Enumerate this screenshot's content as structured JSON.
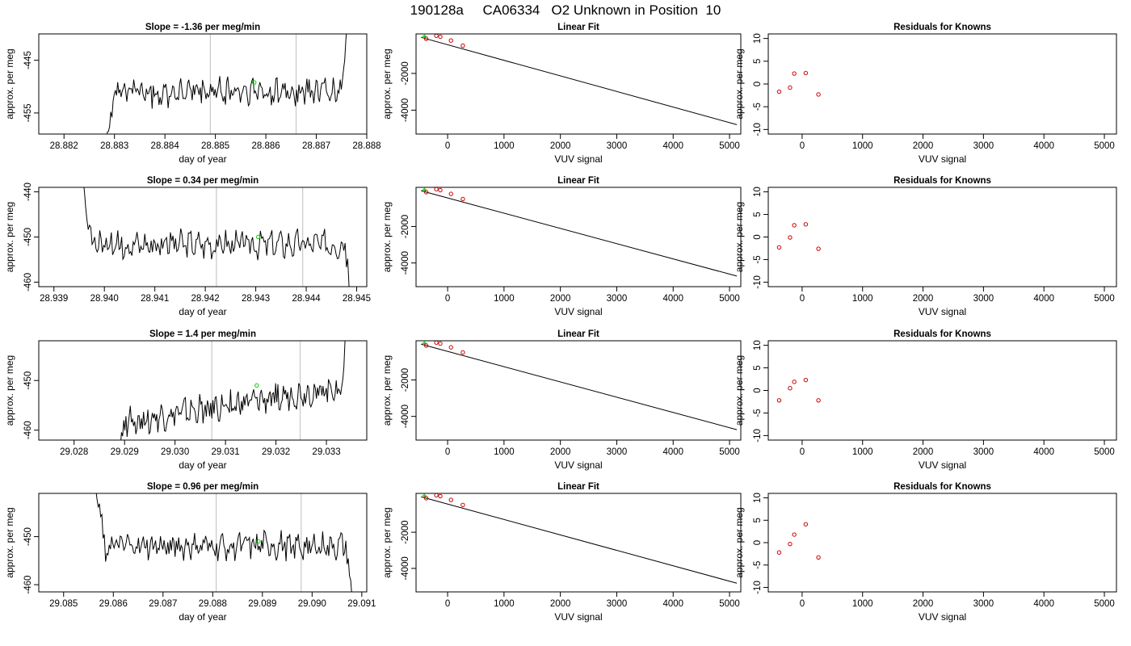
{
  "page": {
    "title": "190128a     CA06334   O2 Unknown in Position  10"
  },
  "colors": {
    "trace": "#000000",
    "marker_green": "#00cc00",
    "known_red": "#cc0000",
    "vline_gray": "#c8c8c8"
  },
  "labels": {
    "time_xlabel": "day of year",
    "ylabel": "approx. per meg",
    "fit_title": "Linear Fit",
    "fit_xlabel": "VUV signal",
    "resid_title": "Residuals for Knowns"
  },
  "chart_data": [
    {
      "panel": "timeseries",
      "type": "line",
      "row": 1,
      "title": "Slope =  -1.36  per meg/min",
      "xlabel": "day of year",
      "ylabel": "approx. per meg",
      "xlim": [
        28.8815,
        28.888
      ],
      "ylim": [
        -459,
        -440
      ],
      "xticks": [
        "28.882",
        "28.883",
        "28.884",
        "28.885",
        "28.886",
        "28.887",
        "28.888"
      ],
      "xtick_values": [
        28.882,
        28.883,
        28.884,
        28.885,
        28.886,
        28.887,
        28.888
      ],
      "yticks": [
        "-445",
        "-455"
      ],
      "ytick_values": [
        -445,
        -455
      ],
      "start": 28.8827,
      "end": 28.8877,
      "base": -451.0,
      "vlines": [
        28.8849,
        28.8866
      ],
      "green_point": {
        "x": 28.88577,
        "y": -449.2
      }
    },
    {
      "panel": "timeseries",
      "type": "line",
      "row": 2,
      "title": "Slope =  0.34  per meg/min",
      "xlabel": "day of year",
      "ylabel": "approx. per meg",
      "xlim": [
        28.9387,
        28.9452
      ],
      "ylim": [
        -461,
        -439
      ],
      "xticks": [
        "28.939",
        "28.940",
        "28.941",
        "28.942",
        "28.943",
        "28.944",
        "28.945"
      ],
      "xtick_values": [
        28.939,
        28.94,
        28.941,
        28.942,
        28.943,
        28.944,
        28.945
      ],
      "yticks": [
        "-440",
        "-450",
        "-460"
      ],
      "ytick_values": [
        -440,
        -450,
        -460
      ],
      "start": 28.9394,
      "end": 28.945,
      "base": -451.5,
      "vlines": [
        28.94222,
        28.94393
      ],
      "green_point": {
        "x": 28.94305,
        "y": -450.0
      }
    },
    {
      "panel": "timeseries",
      "type": "line",
      "row": 3,
      "title": "Slope =  1.4  per meg/min",
      "xlabel": "day of year",
      "ylabel": "approx. per meg",
      "xlim": [
        29.0273,
        29.0338
      ],
      "ylim": [
        -462,
        -442
      ],
      "xticks": [
        "29.028",
        "29.029",
        "29.030",
        "29.031",
        "29.032",
        "29.033"
      ],
      "xtick_values": [
        29.028,
        29.029,
        29.03,
        29.031,
        29.032,
        29.033
      ],
      "yticks": [
        "-450",
        "-460"
      ],
      "ytick_values": [
        -450,
        -460
      ],
      "start": 29.0287,
      "end": 29.0335,
      "base": -455.0,
      "vlines": [
        29.03073,
        29.03248
      ],
      "green_point": {
        "x": 29.03162,
        "y": -451.0
      }
    },
    {
      "panel": "timeseries",
      "type": "line",
      "row": 4,
      "title": "Slope =  0.96  per meg/min",
      "xlabel": "day of year",
      "ylabel": "approx. per meg",
      "xlim": [
        29.0845,
        29.0911
      ],
      "ylim": [
        -461.5,
        -441
      ],
      "xticks": [
        "29.085",
        "29.086",
        "29.087",
        "29.088",
        "29.089",
        "29.090",
        "29.091"
      ],
      "xtick_values": [
        29.085,
        29.086,
        29.087,
        29.088,
        29.089,
        29.09,
        29.091
      ],
      "yticks": [
        "-450",
        "-460"
      ],
      "ytick_values": [
        -450,
        -460
      ],
      "start": 29.0855,
      "end": 29.0909,
      "base": -452.0,
      "vlines": [
        29.08807,
        29.08978
      ],
      "green_point": {
        "x": 29.08892,
        "y": -451.0
      }
    },
    {
      "panel": "fit",
      "type": "scatter",
      "row": 1,
      "title": "Linear Fit",
      "xlabel": "VUV signal",
      "ylabel": "approx. per meg",
      "xlim": [
        -560,
        5200
      ],
      "ylim": [
        -5300,
        150
      ],
      "xticks": [
        "0",
        "1000",
        "2000",
        "3000",
        "4000",
        "5000"
      ],
      "xtick_values": [
        0,
        1000,
        2000,
        3000,
        4000,
        5000
      ],
      "yticks": [
        "-2000",
        "-4000"
      ],
      "ytick_values": [
        -2000,
        -4000
      ],
      "line": {
        "x": [
          -470,
          5130
        ],
        "y": [
          -40,
          -4790
        ]
      },
      "knowns": {
        "x": [
          -380,
          -200,
          -130,
          60,
          270
        ],
        "y": [
          -116,
          50,
          -5,
          -210,
          -490
        ]
      },
      "unknowns": {
        "x": [
          -430,
          -410,
          -400
        ],
        "y": [
          5,
          10,
          -5
        ]
      }
    },
    {
      "panel": "fit",
      "type": "scatter",
      "row": 2,
      "title": "Linear Fit",
      "xlabel": "VUV signal",
      "ylabel": "approx. per meg",
      "xlim": [
        -560,
        5200
      ],
      "ylim": [
        -5300,
        150
      ],
      "xticks": [
        "0",
        "1000",
        "2000",
        "3000",
        "4000",
        "5000"
      ],
      "xtick_values": [
        0,
        1000,
        2000,
        3000,
        4000,
        5000
      ],
      "yticks": [
        "-2000",
        "-4000"
      ],
      "ytick_values": [
        -2000,
        -4000
      ],
      "line": {
        "x": [
          -470,
          5130
        ],
        "y": [
          -40,
          -4720
        ]
      },
      "knowns": {
        "x": [
          -380,
          -200,
          -130,
          60,
          270
        ],
        "y": [
          -116,
          50,
          -5,
          -210,
          -490
        ]
      },
      "unknowns": {
        "x": [
          -430,
          -410,
          -400
        ],
        "y": [
          5,
          10,
          -5
        ]
      }
    },
    {
      "panel": "fit",
      "type": "scatter",
      "row": 3,
      "title": "Linear Fit",
      "xlabel": "VUV signal",
      "ylabel": "approx. per meg",
      "xlim": [
        -560,
        5200
      ],
      "ylim": [
        -5300,
        150
      ],
      "xticks": [
        "0",
        "1000",
        "2000",
        "3000",
        "4000",
        "5000"
      ],
      "xtick_values": [
        0,
        1000,
        2000,
        3000,
        4000,
        5000
      ],
      "yticks": [
        "-2000",
        "-4000"
      ],
      "ytick_values": [
        -2000,
        -4000
      ],
      "line": {
        "x": [
          -470,
          5130
        ],
        "y": [
          -40,
          -4730
        ]
      },
      "knowns": {
        "x": [
          -380,
          -200,
          -130,
          60,
          270
        ],
        "y": [
          -116,
          50,
          -5,
          -210,
          -490
        ]
      },
      "unknowns": {
        "x": [
          -430,
          -410,
          -400
        ],
        "y": [
          5,
          10,
          -5
        ]
      }
    },
    {
      "panel": "fit",
      "type": "scatter",
      "row": 4,
      "title": "Linear Fit",
      "xlabel": "VUV signal",
      "ylabel": "approx. per meg",
      "xlim": [
        -560,
        5200
      ],
      "ylim": [
        -5300,
        150
      ],
      "xticks": [
        "0",
        "1000",
        "2000",
        "3000",
        "4000",
        "5000"
      ],
      "xtick_values": [
        0,
        1000,
        2000,
        3000,
        4000,
        5000
      ],
      "yticks": [
        "-2000",
        "-4000"
      ],
      "ytick_values": [
        -2000,
        -4000
      ],
      "line": {
        "x": [
          -470,
          5130
        ],
        "y": [
          -40,
          -4820
        ]
      },
      "knowns": {
        "x": [
          -380,
          -200,
          -130,
          60,
          270
        ],
        "y": [
          -116,
          50,
          -5,
          -210,
          -490
        ]
      },
      "unknowns": {
        "x": [
          -430,
          -410,
          -400
        ],
        "y": [
          5,
          10,
          -5
        ]
      }
    },
    {
      "panel": "residuals",
      "type": "scatter",
      "row": 1,
      "title": "Residuals for Knowns",
      "xlabel": "VUV signal",
      "ylabel": "approx. per meg",
      "xlim": [
        -560,
        5200
      ],
      "ylim": [
        -11,
        11
      ],
      "xticks": [
        "0",
        "1000",
        "2000",
        "3000",
        "4000",
        "5000"
      ],
      "xtick_values": [
        0,
        1000,
        2000,
        3000,
        4000,
        5000
      ],
      "yticks": [
        "10",
        "5",
        "0",
        "-5",
        "-10"
      ],
      "ytick_values": [
        10,
        5,
        0,
        -5,
        -10
      ],
      "x": [
        -380,
        -200,
        -130,
        60,
        270
      ],
      "y": [
        -1.7,
        -0.8,
        2.3,
        2.4,
        -2.3
      ]
    },
    {
      "panel": "residuals",
      "type": "scatter",
      "row": 2,
      "title": "Residuals for Knowns",
      "xlabel": "VUV signal",
      "ylabel": "approx. per meg",
      "xlim": [
        -560,
        5200
      ],
      "ylim": [
        -11,
        11
      ],
      "xticks": [
        "0",
        "1000",
        "2000",
        "3000",
        "4000",
        "5000"
      ],
      "xtick_values": [
        0,
        1000,
        2000,
        3000,
        4000,
        5000
      ],
      "yticks": [
        "10",
        "5",
        "0",
        "-5",
        "-10"
      ],
      "ytick_values": [
        10,
        5,
        0,
        -5,
        -10
      ],
      "x": [
        -380,
        -200,
        -130,
        60,
        270
      ],
      "y": [
        -2.3,
        -0.1,
        2.6,
        2.8,
        -2.6
      ]
    },
    {
      "panel": "residuals",
      "type": "scatter",
      "row": 3,
      "title": "Residuals for Knowns",
      "xlabel": "VUV signal",
      "ylabel": "approx. per meg",
      "xlim": [
        -560,
        5200
      ],
      "ylim": [
        -11,
        11
      ],
      "xticks": [
        "0",
        "1000",
        "2000",
        "3000",
        "4000",
        "5000"
      ],
      "xtick_values": [
        0,
        1000,
        2000,
        3000,
        4000,
        5000
      ],
      "yticks": [
        "10",
        "5",
        "0",
        "-5",
        "-10"
      ],
      "ytick_values": [
        10,
        5,
        0,
        -5,
        -10
      ],
      "x": [
        -380,
        -200,
        -130,
        60,
        270
      ],
      "y": [
        -2.2,
        0.5,
        1.9,
        2.3,
        -2.2
      ]
    },
    {
      "panel": "residuals",
      "type": "scatter",
      "row": 4,
      "title": "Residuals for Knowns",
      "xlabel": "VUV signal",
      "ylabel": "approx. per meg",
      "xlim": [
        -560,
        5200
      ],
      "ylim": [
        -11,
        11
      ],
      "xticks": [
        "0",
        "1000",
        "2000",
        "3000",
        "4000",
        "5000"
      ],
      "xtick_values": [
        0,
        1000,
        2000,
        3000,
        4000,
        5000
      ],
      "yticks": [
        "10",
        "5",
        "0",
        "-5",
        "-10"
      ],
      "ytick_values": [
        10,
        5,
        0,
        -5,
        -10
      ],
      "x": [
        -380,
        -200,
        -130,
        60,
        270
      ],
      "y": [
        -2.2,
        -0.3,
        1.8,
        4.1,
        -3.3
      ]
    }
  ]
}
